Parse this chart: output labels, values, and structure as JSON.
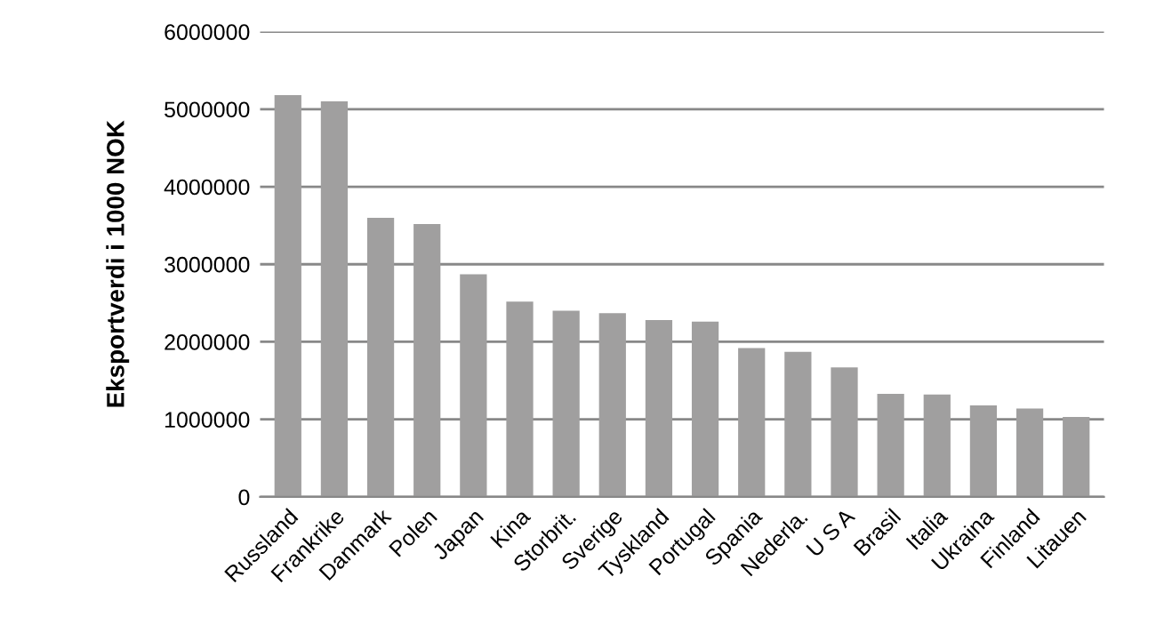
{
  "chart_data": {
    "type": "bar",
    "ylabel": "Eksportverdi i 1000 NOK",
    "categories": [
      "Russland",
      "Frankrike",
      "Danmark",
      "Polen",
      "Japan",
      "Kina",
      "Storbrit.",
      "Sverige",
      "Tyskland",
      "Portugal",
      "Spania",
      "Nederla.",
      "U S A",
      "Brasil",
      "Italia",
      "Ukraina",
      "Finland",
      "Litauen"
    ],
    "values": [
      5180000,
      5100000,
      3600000,
      3520000,
      2870000,
      2520000,
      2400000,
      2370000,
      2280000,
      2260000,
      1920000,
      1870000,
      1670000,
      1330000,
      1320000,
      1180000,
      1140000,
      1030000
    ],
    "color": "#a09f9f",
    "ylim": [
      0,
      6000000
    ],
    "yticks": [
      0,
      1000000,
      2000000,
      3000000,
      4000000,
      5000000,
      6000000
    ],
    "grid": "y",
    "legend": false
  }
}
